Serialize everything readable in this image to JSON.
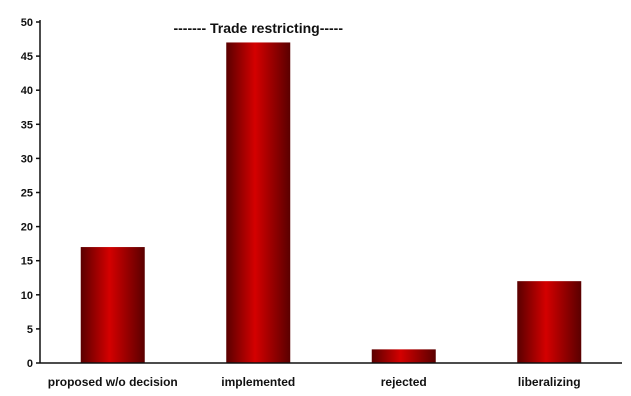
{
  "chart_data": {
    "type": "bar",
    "categories": [
      "proposed w/o decision",
      "implemented",
      "rejected",
      "liberalizing"
    ],
    "values": [
      17,
      47,
      2,
      12
    ],
    "ylim": [
      0,
      50
    ],
    "yticks": [
      0,
      5,
      10,
      15,
      20,
      25,
      30,
      35,
      40,
      45,
      50
    ],
    "annotation": "------- Trade restricting-----",
    "grid": false,
    "legend": "none",
    "colors": {
      "bar_dark": "#5a0000",
      "bar_mid": "#d40000",
      "bar_light": "#ff2a2a"
    }
  }
}
